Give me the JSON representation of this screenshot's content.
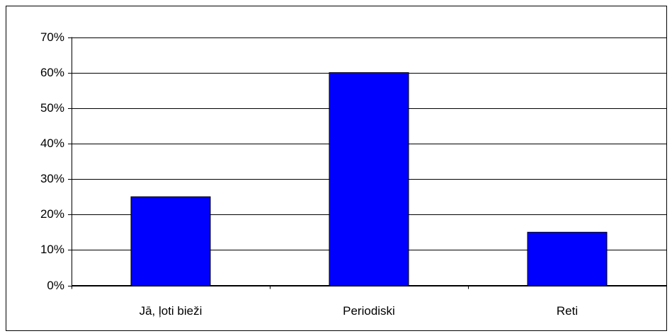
{
  "chart_data": {
    "type": "bar",
    "categories": [
      "Jā, ļoti bieži",
      "Periodiski",
      "Reti"
    ],
    "values": [
      25,
      60,
      15
    ],
    "color": "#0000ff",
    "ylim": [
      0,
      70
    ],
    "yticks": [
      {
        "value": 0,
        "label": "0%"
      },
      {
        "value": 10,
        "label": "10%"
      },
      {
        "value": 20,
        "label": "20%"
      },
      {
        "value": 30,
        "label": "30%"
      },
      {
        "value": 40,
        "label": "40%"
      },
      {
        "value": 50,
        "label": "50%"
      },
      {
        "value": 60,
        "label": "60%"
      },
      {
        "value": 70,
        "label": "70%"
      }
    ],
    "grid": true
  }
}
